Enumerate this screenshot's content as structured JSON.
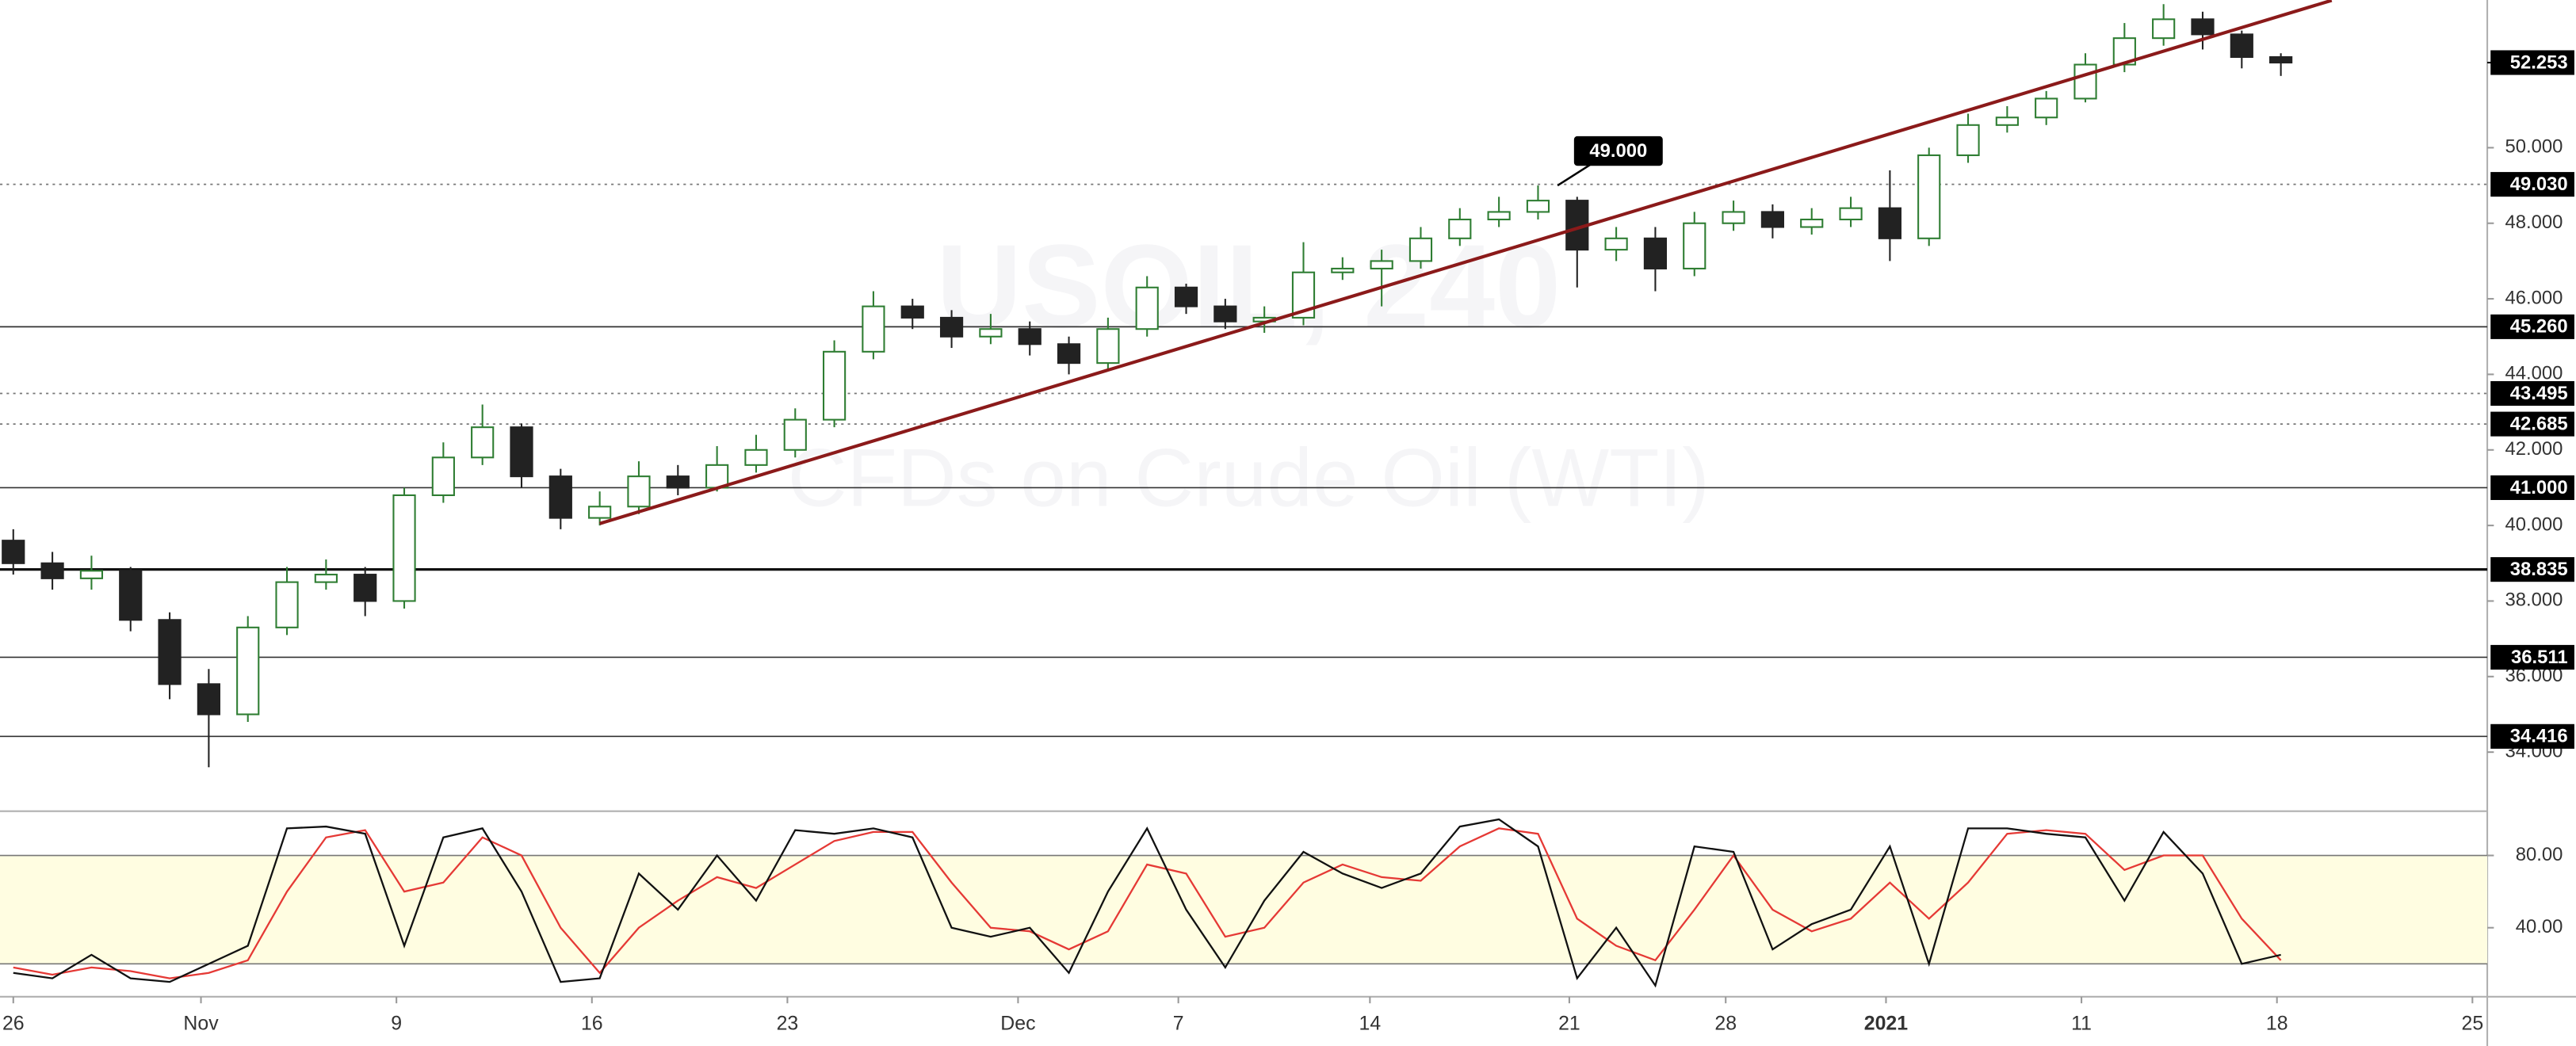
{
  "chart_data": [
    {
      "type": "candlestick",
      "watermark": [
        "USOIL, 240",
        "CFDs on Crude Oil (WTI)"
      ],
      "x": [
        0,
        1,
        2,
        3,
        4,
        5,
        6,
        7,
        8,
        9,
        10,
        11,
        12,
        13,
        14,
        15,
        16,
        17,
        18,
        19,
        20,
        21,
        22,
        23,
        24,
        25,
        26,
        27,
        28,
        29,
        30,
        31,
        32,
        33,
        34,
        35,
        36,
        37,
        38,
        39,
        40,
        41,
        42,
        43,
        44,
        45,
        46,
        47,
        48,
        49,
        50,
        51,
        52,
        53,
        54,
        55,
        56,
        57,
        58
      ],
      "open": [
        39.6,
        39.0,
        38.6,
        38.8,
        37.5,
        35.8,
        35.0,
        37.3,
        38.5,
        38.7,
        38.0,
        40.8,
        41.8,
        42.6,
        41.3,
        40.2,
        40.5,
        41.3,
        41.0,
        41.6,
        42.0,
        42.8,
        44.6,
        45.8,
        45.5,
        45.0,
        45.2,
        44.8,
        44.3,
        45.2,
        46.3,
        45.8,
        45.4,
        45.5,
        46.7,
        46.8,
        47.0,
        47.6,
        48.1,
        48.3,
        48.6,
        47.3,
        47.6,
        46.8,
        48.0,
        48.3,
        47.9,
        48.1,
        48.4,
        47.6,
        49.8,
        50.6,
        50.8,
        51.3,
        52.2,
        52.9,
        53.4,
        53.0,
        52.4
      ],
      "high": [
        39.9,
        39.3,
        39.2,
        38.9,
        37.7,
        36.2,
        37.6,
        38.9,
        39.1,
        38.9,
        41.0,
        42.2,
        43.2,
        42.7,
        41.5,
        40.9,
        41.7,
        41.6,
        42.1,
        42.4,
        43.1,
        44.9,
        46.2,
        46.0,
        45.7,
        45.6,
        45.4,
        45.0,
        45.5,
        46.6,
        46.4,
        46.0,
        45.8,
        47.5,
        47.1,
        47.3,
        47.9,
        48.4,
        48.7,
        49.0,
        48.7,
        47.9,
        47.9,
        48.3,
        48.6,
        48.5,
        48.4,
        48.7,
        49.4,
        50.0,
        50.9,
        51.1,
        51.5,
        52.5,
        53.3,
        53.8,
        53.6,
        53.1,
        52.5
      ],
      "low": [
        38.7,
        38.3,
        38.3,
        37.2,
        35.4,
        33.6,
        34.8,
        37.1,
        38.3,
        37.6,
        37.8,
        40.6,
        41.6,
        41.0,
        39.9,
        40.0,
        40.3,
        40.8,
        40.9,
        41.4,
        41.8,
        42.6,
        44.4,
        45.2,
        44.7,
        44.8,
        44.5,
        44.0,
        44.1,
        45.0,
        45.6,
        45.2,
        45.1,
        45.3,
        46.5,
        45.8,
        46.8,
        47.4,
        47.9,
        48.1,
        46.3,
        47.0,
        46.2,
        46.6,
        47.8,
        47.6,
        47.7,
        47.9,
        47.0,
        47.4,
        49.6,
        50.4,
        50.6,
        51.2,
        52.0,
        52.7,
        52.6,
        52.1,
        51.9
      ],
      "close": [
        39.0,
        38.6,
        38.8,
        37.5,
        35.8,
        35.0,
        37.3,
        38.5,
        38.7,
        38.0,
        40.8,
        41.8,
        42.6,
        41.3,
        40.2,
        40.5,
        41.3,
        41.0,
        41.6,
        42.0,
        42.8,
        44.6,
        45.8,
        45.5,
        45.0,
        45.2,
        44.8,
        44.3,
        45.2,
        46.3,
        45.8,
        45.4,
        45.5,
        46.7,
        46.8,
        47.0,
        47.6,
        48.1,
        48.3,
        48.6,
        47.3,
        47.6,
        46.8,
        48.0,
        48.3,
        47.9,
        48.1,
        48.4,
        47.6,
        49.8,
        50.6,
        50.8,
        51.3,
        52.2,
        52.9,
        53.4,
        53.0,
        52.4,
        52.253
      ],
      "up_color": "#2e7d32",
      "down_color": "#222222",
      "xlim": [
        -0.34,
        63.28
      ],
      "ylim": [
        32.48,
        53.91
      ],
      "yticks": [
        {
          "value": 34,
          "label": "34.000"
        },
        {
          "value": 36,
          "label": "36.000"
        },
        {
          "value": 38,
          "label": "38.000"
        },
        {
          "value": 40,
          "label": "40.000"
        },
        {
          "value": 42,
          "label": "42.000"
        },
        {
          "value": 44,
          "label": "44.000"
        },
        {
          "value": 46,
          "label": "46.000"
        },
        {
          "value": 48,
          "label": "48.000"
        },
        {
          "value": 50,
          "label": "50.000"
        }
      ],
      "levels": [
        {
          "value": 49.03,
          "label": "49.030",
          "style": "dotted"
        },
        {
          "value": 45.26,
          "label": "45.260",
          "style": "solid"
        },
        {
          "value": 43.495,
          "label": "43.495",
          "style": "dotted"
        },
        {
          "value": 42.685,
          "label": "42.685",
          "style": "dotted"
        },
        {
          "value": 41.0,
          "label": "41.000",
          "style": "solid"
        },
        {
          "value": 38.835,
          "label": "38.835",
          "style": "bold"
        },
        {
          "value": 36.511,
          "label": "36.511",
          "style": "solid"
        },
        {
          "value": 34.416,
          "label": "34.416",
          "style": "solid"
        }
      ],
      "trendline": {
        "x": [
          15.0,
          59.3
        ],
        "y": [
          40.05,
          53.9
        ],
        "color": "#8b1a1a"
      },
      "annotation": {
        "text": "49.000",
        "x": 39.5,
        "y": 49.0
      },
      "last_price": {
        "value": 52.253,
        "label": "52.253"
      }
    },
    {
      "type": "line",
      "x": [
        0,
        1,
        2,
        3,
        4,
        5,
        6,
        7,
        8,
        9,
        10,
        11,
        12,
        13,
        14,
        15,
        16,
        17,
        18,
        19,
        20,
        21,
        22,
        23,
        24,
        25,
        26,
        27,
        28,
        29,
        30,
        31,
        32,
        33,
        34,
        35,
        36,
        37,
        38,
        39,
        40,
        41,
        42,
        43,
        44,
        45,
        46,
        47,
        48,
        49,
        50,
        51,
        52,
        53,
        54,
        55,
        56,
        57,
        58
      ],
      "series": [
        {
          "color": "#111111",
          "values": [
            15,
            12,
            25,
            12,
            10,
            20,
            30,
            95,
            96,
            92,
            30,
            90,
            95,
            60,
            10,
            12,
            70,
            50,
            80,
            55,
            94,
            92,
            95,
            90,
            40,
            35,
            40,
            15,
            60,
            95,
            50,
            18,
            55,
            82,
            70,
            62,
            70,
            96,
            100,
            85,
            12,
            40,
            8,
            85,
            82,
            28,
            42,
            50,
            85,
            20,
            95,
            95,
            92,
            90,
            55,
            93,
            70,
            20,
            25
          ]
        },
        {
          "color": "#e53935",
          "values": [
            18,
            14,
            18,
            16,
            12,
            15,
            22,
            60,
            90,
            94,
            60,
            65,
            90,
            80,
            40,
            15,
            40,
            55,
            68,
            62,
            75,
            88,
            93,
            93,
            65,
            40,
            38,
            28,
            38,
            75,
            70,
            35,
            40,
            65,
            75,
            68,
            66,
            85,
            95,
            92,
            45,
            30,
            22,
            50,
            80,
            50,
            38,
            45,
            65,
            45,
            65,
            92,
            94,
            92,
            72,
            80,
            80,
            45,
            22
          ]
        }
      ],
      "band": [
        20,
        80
      ],
      "band_color": "#fffde1",
      "xlim": [
        -0.34,
        63.28
      ],
      "ylim": [
        1.8,
        103.6
      ],
      "yticks": [
        {
          "value": 40,
          "label": "40.00"
        },
        {
          "value": 80,
          "label": "80.00"
        }
      ],
      "xticks": [
        {
          "value": 0,
          "label": "26"
        },
        {
          "value": 4.8,
          "label": "Nov"
        },
        {
          "value": 9.8,
          "label": "9"
        },
        {
          "value": 14.8,
          "label": "16"
        },
        {
          "value": 19.8,
          "label": "23"
        },
        {
          "value": 25.7,
          "label": "Dec"
        },
        {
          "value": 29.8,
          "label": "7"
        },
        {
          "value": 34.7,
          "label": "14"
        },
        {
          "value": 39.8,
          "label": "21"
        },
        {
          "value": 43.8,
          "label": "28"
        },
        {
          "value": 47.9,
          "label": "2021"
        },
        {
          "value": 52.9,
          "label": "11"
        },
        {
          "value": 57.9,
          "label": "18"
        },
        {
          "value": 62.9,
          "label": "25"
        }
      ]
    }
  ]
}
